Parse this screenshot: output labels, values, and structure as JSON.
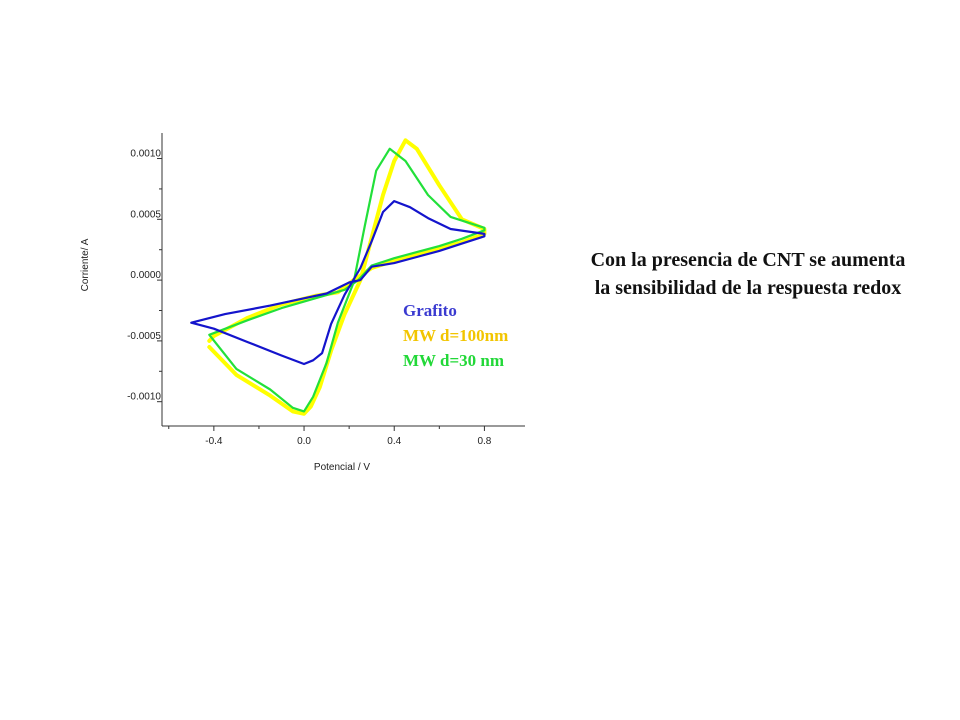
{
  "chart_data": {
    "type": "line",
    "xlabel": "Potencial / V",
    "ylabel": "Corriente/ A",
    "xlim": [
      -0.63,
      0.98
    ],
    "ylim": [
      -0.0012,
      0.00121
    ],
    "x_ticks": [
      -0.4,
      0.0,
      0.4,
      0.8
    ],
    "x_tick_labels": [
      "-0.4",
      "0.0",
      "0.4",
      "0.8"
    ],
    "y_ticks": [
      0.001,
      0.0005,
      0.0,
      -0.0005,
      -0.001
    ],
    "y_tick_labels": [
      "0.0010",
      "0.0005",
      "0.0000",
      "-0.0005",
      "-0.0010"
    ],
    "grid": false,
    "legend_position": "inside-right",
    "series": [
      {
        "name": "MW d=100nm",
        "color": "#ffff00",
        "points": [
          [
            -0.42,
            -0.00055
          ],
          [
            -0.3,
            -0.00078
          ],
          [
            -0.15,
            -0.00095
          ],
          [
            -0.05,
            -0.00108
          ],
          [
            0.0,
            -0.0011
          ],
          [
            0.03,
            -0.00104
          ],
          [
            0.07,
            -0.00088
          ],
          [
            0.12,
            -0.00058
          ],
          [
            0.18,
            -0.00028
          ],
          [
            0.25,
            0.0
          ],
          [
            0.3,
            0.00035
          ],
          [
            0.35,
            0.0007
          ],
          [
            0.4,
            0.00098
          ],
          [
            0.45,
            0.00115
          ],
          [
            0.5,
            0.00108
          ],
          [
            0.6,
            0.00078
          ],
          [
            0.7,
            0.0005
          ],
          [
            0.8,
            0.00042
          ],
          [
            0.8,
            0.00038
          ],
          [
            0.7,
            0.00031
          ],
          [
            0.6,
            0.00026
          ],
          [
            0.5,
            0.00021
          ],
          [
            0.4,
            0.00016
          ],
          [
            0.3,
            0.0001
          ],
          [
            0.22,
            0.0
          ],
          [
            0.15,
            -0.0001
          ],
          [
            0.05,
            -0.00013
          ],
          [
            -0.1,
            -0.0002
          ],
          [
            -0.25,
            -0.00031
          ],
          [
            -0.4,
            -0.00046
          ],
          [
            -0.42,
            -0.0005
          ]
        ]
      },
      {
        "name": "MW d=30 nm",
        "color": "#22e03a",
        "points": [
          [
            -0.42,
            -0.00045
          ],
          [
            -0.3,
            -0.00073
          ],
          [
            -0.15,
            -0.0009
          ],
          [
            -0.05,
            -0.00105
          ],
          [
            0.0,
            -0.00108
          ],
          [
            0.04,
            -0.00096
          ],
          [
            0.1,
            -0.00068
          ],
          [
            0.15,
            -0.00035
          ],
          [
            0.22,
            -2e-05
          ],
          [
            0.27,
            0.00045
          ],
          [
            0.32,
            0.0009
          ],
          [
            0.38,
            0.00108
          ],
          [
            0.45,
            0.00098
          ],
          [
            0.55,
            0.0007
          ],
          [
            0.65,
            0.00052
          ],
          [
            0.8,
            0.00043
          ],
          [
            0.8,
            0.00041
          ],
          [
            0.7,
            0.00034
          ],
          [
            0.6,
            0.00028
          ],
          [
            0.5,
            0.00023
          ],
          [
            0.4,
            0.00018
          ],
          [
            0.3,
            0.00012
          ],
          [
            0.24,
            0.0
          ],
          [
            0.18,
            -8e-05
          ],
          [
            0.05,
            -0.00015
          ],
          [
            -0.1,
            -0.00023
          ],
          [
            -0.25,
            -0.00033
          ],
          [
            -0.42,
            -0.00045
          ]
        ]
      },
      {
        "name": "Grafito",
        "color": "#1414cc",
        "points": [
          [
            -0.5,
            -0.00035
          ],
          [
            -0.4,
            -0.0004
          ],
          [
            -0.25,
            -0.00051
          ],
          [
            -0.1,
            -0.00062
          ],
          [
            0.0,
            -0.00069
          ],
          [
            0.04,
            -0.00066
          ],
          [
            0.08,
            -0.0006
          ],
          [
            0.12,
            -0.00036
          ],
          [
            0.18,
            -0.00012
          ],
          [
            0.25,
            0.0001
          ],
          [
            0.3,
            0.00032
          ],
          [
            0.35,
            0.00056
          ],
          [
            0.4,
            0.00065
          ],
          [
            0.47,
            0.0006
          ],
          [
            0.55,
            0.00051
          ],
          [
            0.65,
            0.00042
          ],
          [
            0.8,
            0.00038
          ],
          [
            0.8,
            0.00036
          ],
          [
            0.7,
            0.0003
          ],
          [
            0.6,
            0.00024
          ],
          [
            0.5,
            0.00019
          ],
          [
            0.4,
            0.00014
          ],
          [
            0.3,
            0.00011
          ],
          [
            0.25,
            0.0
          ],
          [
            0.2,
            -2e-05
          ],
          [
            0.1,
            -0.00011
          ],
          [
            0.0,
            -0.00015
          ],
          [
            -0.15,
            -0.00021
          ],
          [
            -0.35,
            -0.00028
          ],
          [
            -0.5,
            -0.00035
          ]
        ]
      }
    ]
  },
  "annotation": {
    "line1": "Con la presencia de CNT se aumenta",
    "line2": "la sensibilidad de la respuesta redox"
  }
}
